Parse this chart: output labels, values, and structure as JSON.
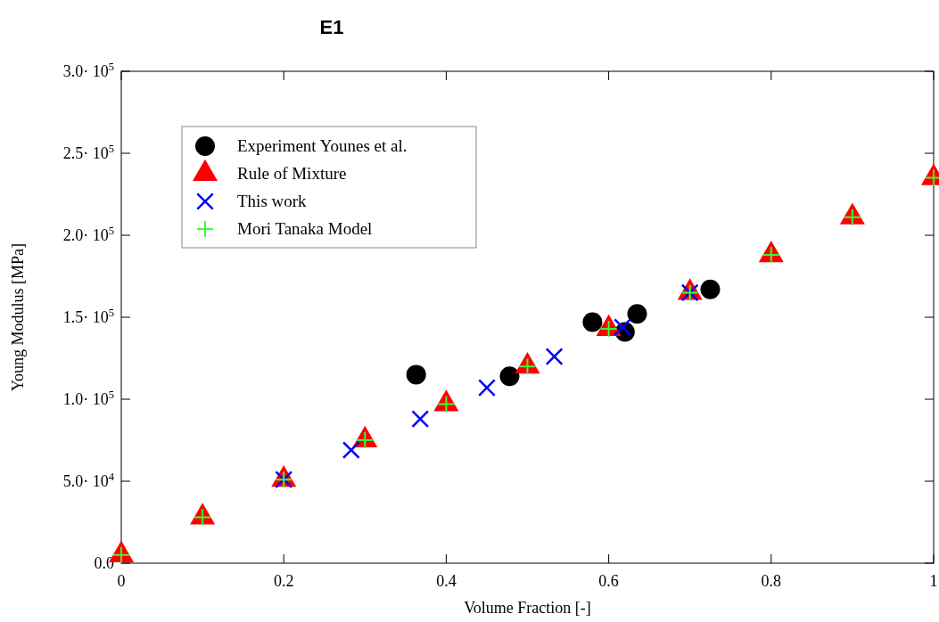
{
  "chart_data": {
    "type": "scatter",
    "title": "E1",
    "xlabel": "Volume Fraction [-]",
    "ylabel": "Young Modulus [MPa]",
    "xlim": [
      0,
      1
    ],
    "ylim": [
      0,
      300000
    ],
    "xticks": [
      0,
      0.2,
      0.4,
      0.6,
      0.8,
      1
    ],
    "yticks": [
      {
        "value": 0,
        "label": "0.0"
      },
      {
        "value": 50000,
        "label": "5.0· 10$^{4}$"
      },
      {
        "value": 100000,
        "label": "1.0· 10$^{5}$"
      },
      {
        "value": 150000,
        "label": "1.5· 10$^{5}$"
      },
      {
        "value": 200000,
        "label": "2.0· 10$^{5}$"
      },
      {
        "value": 250000,
        "label": "2.5· 10$^{5}$"
      },
      {
        "value": 300000,
        "label": "3.0· 10$^{5}$"
      }
    ],
    "grid": false,
    "legend": "top left",
    "series": [
      {
        "name": "Experiment Younes et al.",
        "color": "#000000",
        "marker": "circle",
        "x": [
          0.363,
          0.478,
          0.58,
          0.62,
          0.635,
          0.725
        ],
        "values": [
          115000,
          114000,
          147000,
          141000,
          152000,
          167000
        ]
      },
      {
        "name": "Rule of Mixture",
        "color": "#ff0000",
        "marker": "triangle",
        "x": [
          0,
          0.1,
          0.2,
          0.3,
          0.4,
          0.5,
          0.6,
          0.7,
          0.8,
          0.9,
          1
        ],
        "values": [
          5000,
          28000,
          51000,
          75000,
          97000,
          120000,
          143000,
          165000,
          188000,
          211000,
          235000
        ]
      },
      {
        "name": "This work",
        "color": "#0000ff",
        "marker": "x",
        "x": [
          0.2,
          0.283,
          0.368,
          0.45,
          0.533,
          0.617,
          0.7
        ],
        "values": [
          51000,
          69000,
          88000,
          107000,
          126000,
          144000,
          165000
        ]
      },
      {
        "name": "Mori Tanaka Model",
        "color": "#33ff33",
        "marker": "cross",
        "x": [
          0,
          0.1,
          0.2,
          0.3,
          0.4,
          0.5,
          0.6,
          0.7,
          0.8,
          0.9,
          1
        ],
        "values": [
          5000,
          28000,
          51000,
          75000,
          97000,
          120000,
          143000,
          165000,
          188000,
          211000,
          235000
        ]
      }
    ]
  }
}
